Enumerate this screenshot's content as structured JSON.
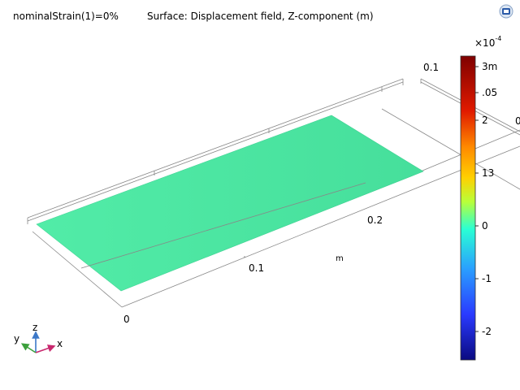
{
  "header": {
    "parameter_text": "nominalStrain(1)=0%",
    "plot_title": "Surface: Displacement field, Z-component (m)"
  },
  "toolbar": {
    "icon": "zoom-extents-icon"
  },
  "colorbar": {
    "multiplier_base": "×10",
    "multiplier_exp": "-4",
    "ticks": [
      "3m",
      ".05",
      "2",
      "13",
      "0",
      "-1",
      "-2"
    ],
    "colors": [
      "#7f0000",
      "#ff2a00",
      "#ffd000",
      "#d4ff2a",
      "#2affd4",
      "#2a6fff",
      "#00007f"
    ],
    "range_min": -2.6,
    "range_max": 3.3
  },
  "plot": {
    "surface_color": "#4ce7a3",
    "axis_labels": {
      "tick_01_top": "0.1",
      "tick_02": "0.2",
      "tick_01": "0.1",
      "tick_0": "0",
      "unit": "m",
      "edge_0": "0"
    }
  },
  "triad": {
    "x": "x",
    "y": "y",
    "z": "z",
    "x_color": "#c8286e",
    "y_color": "#3ca03c",
    "z_color": "#3c78c8"
  }
}
